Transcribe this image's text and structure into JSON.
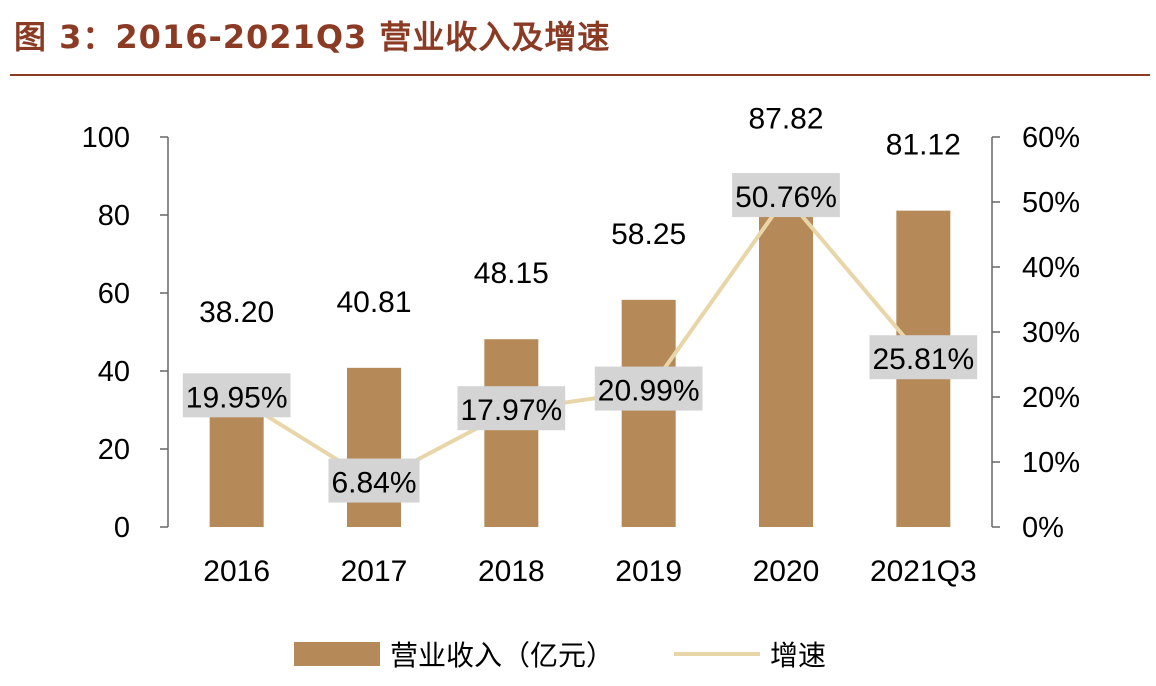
{
  "figure_title": "图 3：2016-2021Q3 营业收入及增速",
  "colors": {
    "bar": "#b58a58",
    "line": "#e8d5a8",
    "title": "#8b3a24",
    "label_box": "#d4d4d4",
    "axis": "#666666"
  },
  "chart_data": {
    "type": "bar",
    "title": "2016-2021Q3 营业收入及增速",
    "categories": [
      "2016",
      "2017",
      "2018",
      "2019",
      "2020",
      "2021Q3"
    ],
    "series": [
      {
        "name": "营业收入（亿元）",
        "type": "bar",
        "axis": "left",
        "values": [
          38.2,
          40.81,
          48.15,
          58.25,
          87.82,
          81.12
        ],
        "labels": [
          "38.20",
          "40.81",
          "48.15",
          "58.25",
          "87.82",
          "81.12"
        ]
      },
      {
        "name": "增速",
        "type": "line",
        "axis": "right",
        "values": [
          19.95,
          6.84,
          17.97,
          20.99,
          50.76,
          25.81
        ],
        "labels": [
          "19.95%",
          "6.84%",
          "17.97%",
          "20.99%",
          "50.76%",
          "25.81%"
        ]
      }
    ],
    "left_axis": {
      "min": 0,
      "max": 100,
      "ticks": [
        "0",
        "20",
        "40",
        "60",
        "80",
        "100"
      ]
    },
    "right_axis": {
      "min": 0,
      "max": 60,
      "ticks": [
        "0%",
        "10%",
        "20%",
        "30%",
        "40%",
        "50%",
        "60%"
      ]
    },
    "legend": {
      "position": "bottom",
      "items": [
        {
          "label": "营业收入（亿元）",
          "kind": "bar"
        },
        {
          "label": "增速",
          "kind": "line"
        }
      ]
    }
  }
}
